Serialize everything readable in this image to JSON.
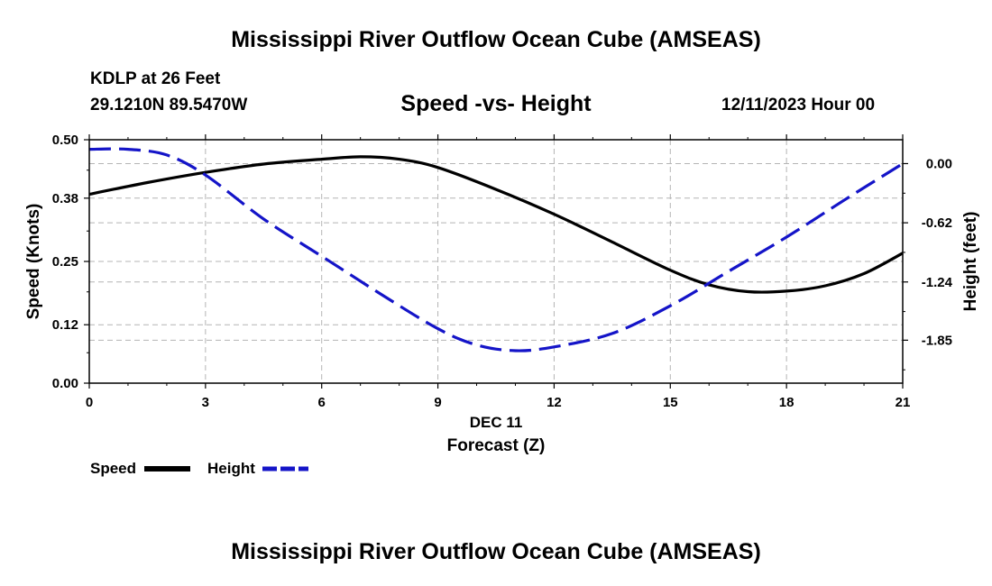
{
  "header": {
    "title": "Mississippi River Outflow Ocean Cube (AMSEAS)",
    "station": "KDLP at 26 Feet",
    "coords": "29.1210N  89.5470W",
    "subtitle": "Speed -vs- Height",
    "datetime": "12/11/2023 Hour 00"
  },
  "footer": {
    "title": "Mississippi River Outflow Ocean Cube (AMSEAS)"
  },
  "colors": {
    "speed": "#000000",
    "height": "#1414c8",
    "grid": "#b4b4b4"
  },
  "chart_data": {
    "type": "line",
    "title": "Speed -vs- Height",
    "xlabel": "Forecast (Z)",
    "xlabel_date": "DEC 11",
    "ylabel": "Speed (Knots)",
    "y2label": "Height (feet)",
    "xlim": [
      0,
      21
    ],
    "ylim": [
      0,
      0.5
    ],
    "y2lim": [
      -2.3,
      0.25
    ],
    "x_ticks": [
      0,
      3,
      6,
      9,
      12,
      15,
      18,
      21
    ],
    "y_ticks": [
      "0.00",
      "0.12",
      "0.25",
      "0.38",
      "0.50"
    ],
    "y2_ticks": [
      "0.00",
      "-0.62",
      "-1.24",
      "-1.85"
    ],
    "grid": true,
    "legend": [
      {
        "name": "Speed",
        "style": "solid"
      },
      {
        "name": "Height",
        "style": "dashed"
      }
    ],
    "series": [
      {
        "name": "Speed",
        "axis": "left",
        "x": [
          0,
          1.5,
          3,
          4.5,
          6,
          7,
          8,
          9,
          10.5,
          12,
          13.5,
          15,
          16,
          17,
          18,
          19,
          20,
          21
        ],
        "values": [
          0.388,
          0.412,
          0.433,
          0.45,
          0.46,
          0.465,
          0.46,
          0.443,
          0.398,
          0.347,
          0.29,
          0.232,
          0.202,
          0.188,
          0.189,
          0.2,
          0.225,
          0.267
        ]
      },
      {
        "name": "Height",
        "axis": "right",
        "x": [
          0,
          1,
          2,
          3,
          4.5,
          6,
          7.5,
          9,
          10,
          11,
          12,
          13.5,
          15,
          16.5,
          18,
          19.5,
          21
        ],
        "values": [
          0.15,
          0.15,
          0.09,
          -0.12,
          -0.58,
          -0.97,
          -1.36,
          -1.73,
          -1.9,
          -1.96,
          -1.92,
          -1.78,
          -1.49,
          -1.13,
          -0.77,
          -0.38,
          0.0
        ]
      }
    ]
  }
}
